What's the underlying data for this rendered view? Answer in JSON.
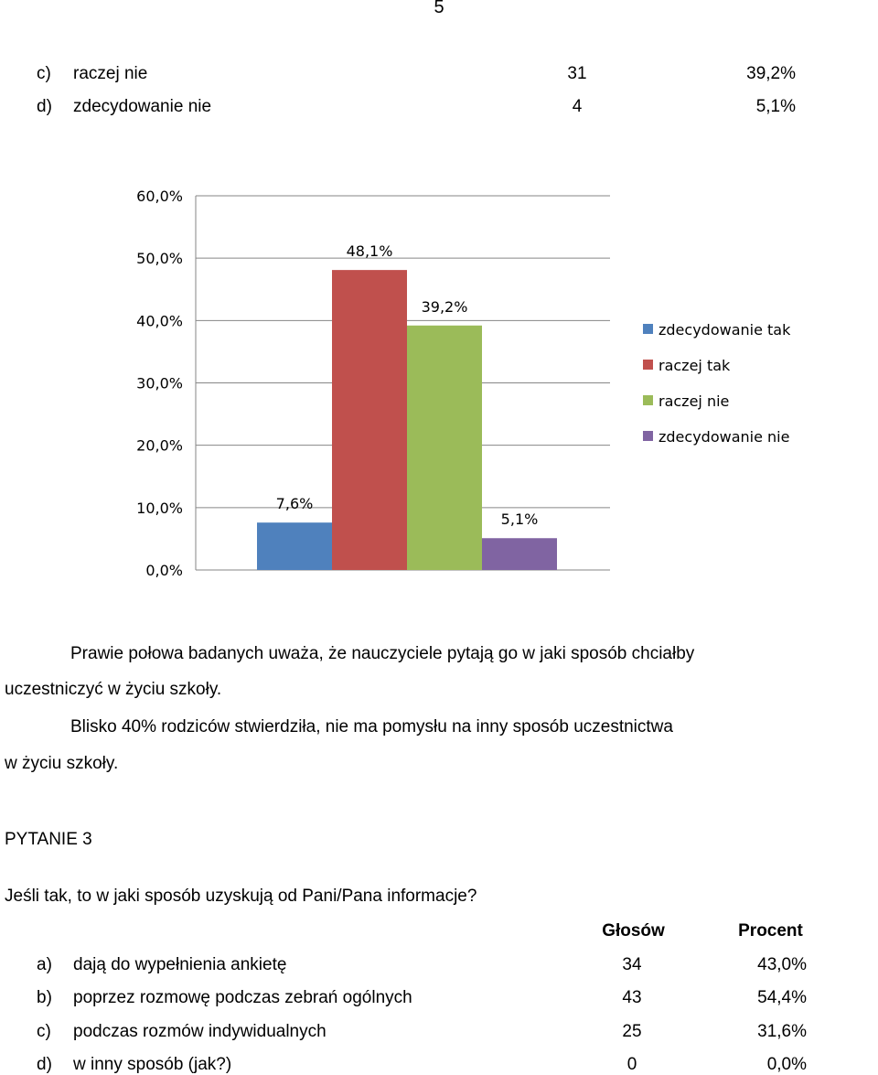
{
  "page_number": "5",
  "top_rows": [
    {
      "letter": "c)",
      "label": "raczej nie",
      "count": "31",
      "percent": "39,2%"
    },
    {
      "letter": "d)",
      "label": "zdecydowanie nie",
      "count": "4",
      "percent": "5,1%"
    }
  ],
  "chart_data": {
    "type": "bar",
    "categories": [
      "zdecydowanie tak",
      "raczej tak",
      "raczej nie",
      "zdecydowanie nie"
    ],
    "values": [
      7.6,
      48.1,
      39.2,
      5.1
    ],
    "data_labels": [
      "7,6%",
      "48,1%",
      "39,2%",
      "5,1%"
    ],
    "colors": [
      "#4f81bd",
      "#c0504d",
      "#9bbb59",
      "#8064a2"
    ],
    "ylim": [
      0,
      60
    ],
    "yticks": [
      "0,0%",
      "10,0%",
      "20,0%",
      "30,0%",
      "40,0%",
      "50,0%",
      "60,0%"
    ],
    "grid": true,
    "legend_position": "right",
    "title": "",
    "xlabel": "",
    "ylabel": ""
  },
  "paragraphs": {
    "p1_line1": "Prawie połowa badanych uważa, że nauczyciele pytają go w jaki sposób chciałby",
    "p1_line2": "uczestniczyć w życiu szkoły.",
    "p2_line1": "Blisko 40% rodziców stwierdziła, nie ma pomysłu na inny sposób uczestnictwa",
    "p2_line2": "w życiu szkoły."
  },
  "question": {
    "heading": "PYTANIE 3",
    "text": "Jeśli tak, to w jaki sposób uzyskują od Pani/Pana informacje?",
    "col_votes": "Głosów",
    "col_percent": "Procent",
    "rows": [
      {
        "letter": "a)",
        "label": "dają do wypełnienia ankietę",
        "count": "34",
        "percent": "43,0%"
      },
      {
        "letter": "b)",
        "label": "poprzez rozmowę podczas zebrań ogólnych",
        "count": "43",
        "percent": "54,4%"
      },
      {
        "letter": "c)",
        "label": "podczas rozmów indywidualnych",
        "count": "25",
        "percent": "31,6%"
      },
      {
        "letter": "d)",
        "label": "w inny sposób (jak?)",
        "count": "0",
        "percent": "0,0%"
      }
    ]
  }
}
